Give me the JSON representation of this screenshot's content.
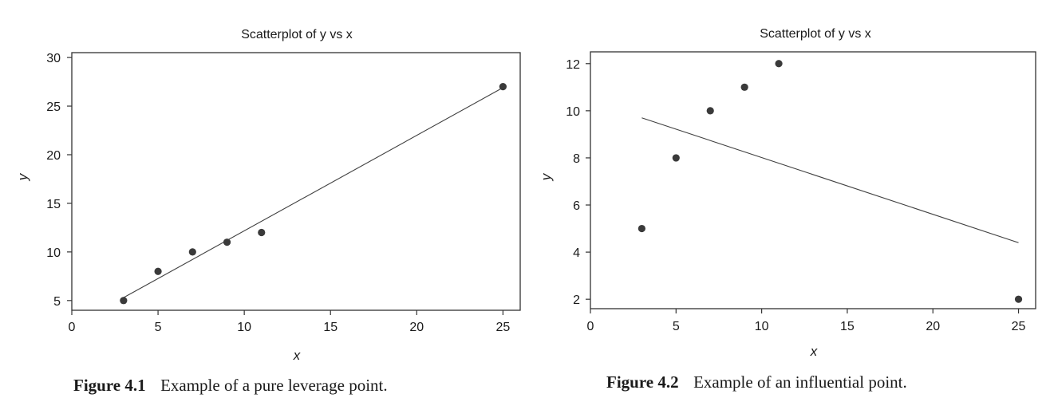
{
  "chart_data": [
    {
      "type": "scatter",
      "title": "Scatterplot of y vs x",
      "xlabel": "x",
      "ylabel": "y",
      "xlim": [
        0,
        26
      ],
      "ylim": [
        4,
        30.5
      ],
      "xticks": [
        0,
        5,
        10,
        15,
        20,
        25
      ],
      "yticks": [
        5,
        10,
        15,
        20,
        25,
        30
      ],
      "grid": false,
      "points": [
        {
          "x": 3,
          "y": 5
        },
        {
          "x": 5,
          "y": 8
        },
        {
          "x": 7,
          "y": 10
        },
        {
          "x": 9,
          "y": 11
        },
        {
          "x": 11,
          "y": 12
        },
        {
          "x": 25,
          "y": 27
        }
      ],
      "fit_line": {
        "x": [
          3,
          25
        ],
        "y": [
          5.3,
          26.9
        ]
      },
      "caption_number": "Figure 4.1",
      "caption_text": "Example of a pure leverage point."
    },
    {
      "type": "scatter",
      "title": "Scatterplot of y vs x",
      "xlabel": "x",
      "ylabel": "y",
      "xlim": [
        0,
        26
      ],
      "ylim": [
        1.6,
        12.5
      ],
      "xticks": [
        0,
        5,
        10,
        15,
        20,
        25
      ],
      "yticks": [
        2,
        4,
        6,
        8,
        10,
        12
      ],
      "grid": false,
      "points": [
        {
          "x": 3,
          "y": 5
        },
        {
          "x": 5,
          "y": 8
        },
        {
          "x": 7,
          "y": 10
        },
        {
          "x": 9,
          "y": 11
        },
        {
          "x": 11,
          "y": 12
        },
        {
          "x": 25,
          "y": 2
        }
      ],
      "fit_line": {
        "x": [
          3,
          25
        ],
        "y": [
          9.7,
          4.4
        ]
      },
      "caption_number": "Figure 4.2",
      "caption_text": "Example of an influential point."
    }
  ],
  "colors": {
    "point": "#3a3a3a",
    "line": "#404040",
    "frame": "#333333"
  }
}
